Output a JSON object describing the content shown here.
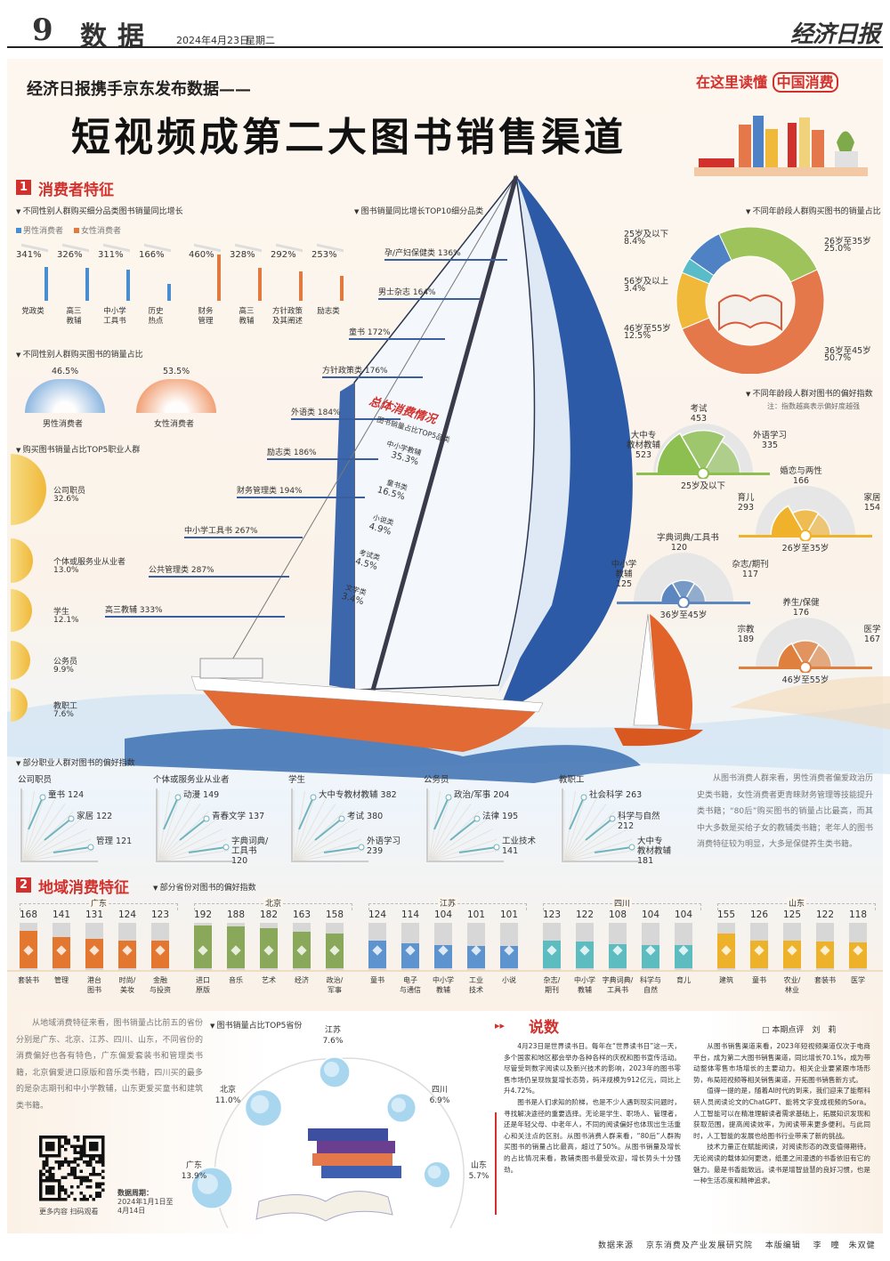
{
  "masthead": {
    "page_no": "9",
    "section": "数据",
    "date": "2024年4月23日",
    "weekday": "星期二",
    "logo": "经济日报"
  },
  "headline": {
    "kicker": "经济日报携手京东发布数据——",
    "title": "短视频成第二大图书销售渠道",
    "tagline_prefix": "在这里读懂",
    "tagline_highlight": "中国消费"
  },
  "section1": {
    "number": "1",
    "title": "消费者特征",
    "gender_growth": {
      "title": "不同性别人群购买细分品类图书销量同比增长",
      "legend": [
        {
          "name": "男性消费者",
          "color": "#4a8ed1"
        },
        {
          "name": "女性消费者",
          "color": "#e2793f"
        }
      ],
      "bars": [
        {
          "label": "党政类",
          "value": "341%",
          "v": 341,
          "group": 0
        },
        {
          "label": "高三\n教辅",
          "value": "326%",
          "v": 326,
          "group": 0
        },
        {
          "label": "中小学\n工具书",
          "value": "311%",
          "v": 311,
          "group": 0
        },
        {
          "label": "历史\n热点",
          "value": "166%",
          "v": 166,
          "group": 0
        },
        {
          "label": "财务\n管理",
          "value": "460%",
          "v": 460,
          "group": 1
        },
        {
          "label": "高三\n教辅",
          "value": "328%",
          "v": 328,
          "group": 1
        },
        {
          "label": "方针政策\n及其阐述",
          "value": "292%",
          "v": 292,
          "group": 1
        },
        {
          "label": "励志类",
          "value": "253%",
          "v": 253,
          "group": 1
        }
      ]
    },
    "gender_share": {
      "title": "不同性别人群购买图书的销量占比",
      "items": [
        {
          "name": "男性消费者",
          "value": "46.5%",
          "color": "#6fa6dc"
        },
        {
          "name": "女性消费者",
          "value": "53.5%",
          "color": "#ee8a55"
        }
      ]
    },
    "occupation_top5": {
      "title": "购买图书销量占比TOP5职业人群",
      "items": [
        {
          "name": "公司职员",
          "value": "32.6%",
          "v": 32.6
        },
        {
          "name": "个体或服务业从业者",
          "value": "13.0%",
          "v": 13.0
        },
        {
          "name": "学生",
          "value": "12.1%",
          "v": 12.1
        },
        {
          "name": "公务员",
          "value": "9.9%",
          "v": 9.9
        },
        {
          "name": "教职工",
          "value": "7.6%",
          "v": 7.6
        }
      ]
    },
    "top10": {
      "title": "图书销量同比增长TOP10细分品类",
      "items": [
        "孕/产妇保健类 136%",
        "男士杂志 164%",
        "童书 172%",
        "方针政策类 176%",
        "外语类 184%",
        "励志类 186%",
        "财务管理类 194%",
        "中小学工具书 267%",
        "公共管理类 287%",
        "高三教辅 333%"
      ]
    },
    "overall": {
      "title": "总体消费情况",
      "subtitle": "图书销量占比TOP5品类",
      "items": [
        {
          "name": "中小学教辅",
          "value": "35.3%"
        },
        {
          "name": "童书类",
          "value": "16.5%"
        },
        {
          "name": "小说类",
          "value": "4.9%"
        },
        {
          "name": "考试类",
          "value": "4.5%"
        },
        {
          "name": "文学类",
          "value": "3.4%"
        }
      ]
    },
    "age_share": {
      "title": "不同年龄段人群购买图书的销量占比",
      "slices": [
        {
          "name": "26岁至35岁",
          "value": "25.0%",
          "v": 25.0,
          "color": "#9dc35a"
        },
        {
          "name": "36岁至45岁",
          "value": "50.7%",
          "v": 50.7,
          "color": "#e5784a"
        },
        {
          "name": "46岁至55岁",
          "value": "12.5%",
          "v": 12.5,
          "color": "#f0b93a"
        },
        {
          "name": "56岁及以上",
          "value": "3.4%",
          "v": 3.4,
          "color": "#5bbcc9"
        },
        {
          "name": "25岁及以下",
          "value": "8.4%",
          "v": 8.4,
          "color": "#4f82c4"
        }
      ]
    },
    "age_pref": {
      "title": "不同年龄段人群对图书的偏好指数",
      "note": "注：指数越高表示偏好度越强",
      "groups": [
        {
          "age": "25岁及以下",
          "color": "#8cbf4f",
          "items": [
            {
              "name": "大中专\n教材教辅",
              "value": "523",
              "v": 523
            },
            {
              "name": "考试",
              "value": "453",
              "v": 453
            },
            {
              "name": "外语学习",
              "value": "335",
              "v": 335
            }
          ]
        },
        {
          "age": "26岁至35岁",
          "color": "#f0b22b",
          "items": [
            {
              "name": "育儿",
              "value": "293",
              "v": 293
            },
            {
              "name": "婚恋与两性",
              "value": "166",
              "v": 166
            },
            {
              "name": "家居",
              "value": "154",
              "v": 154
            }
          ]
        },
        {
          "age": "36岁至45岁",
          "color": "#5b86bf",
          "items": [
            {
              "name": "中小学\n教辅",
              "value": "125",
              "v": 125
            },
            {
              "name": "字典词典/工具书",
              "value": "120",
              "v": 120
            },
            {
              "name": "杂志/期刊",
              "value": "117",
              "v": 117
            }
          ]
        },
        {
          "age": "46岁至55岁",
          "color": "#e0803e",
          "items": [
            {
              "name": "宗教",
              "value": "189",
              "v": 189
            },
            {
              "name": "养生/保健",
              "value": "176",
              "v": 176
            },
            {
              "name": "医学",
              "value": "167",
              "v": 167
            }
          ]
        }
      ]
    },
    "occupation_pref": {
      "title": "部分职业人群对图书的偏好指数",
      "groups": [
        {
          "name": "公司职员",
          "items": [
            "童书 124",
            "家居 122",
            "管理 121"
          ]
        },
        {
          "name": "个体或服务业从业者",
          "items": [
            "动漫 149",
            "青春文学 137",
            "字典词典/\n工具书\n120"
          ]
        },
        {
          "name": "学生",
          "items": [
            "大中专教材教辅 382",
            "考试 380",
            "外语学习\n239"
          ]
        },
        {
          "name": "公务员",
          "items": [
            "政治/军事 204",
            "法律 195",
            "工业技术\n141"
          ]
        },
        {
          "name": "教职工",
          "items": [
            "社会科学 263",
            "科学与自然\n212",
            "大中专\n教材教辅\n181"
          ]
        }
      ]
    },
    "commentary": "从图书消费人群来看，男性消费者偏爱政治历史类书籍，女性消费者更青睐财务管理等技能提升类书籍；“80后”购买图书的销量占比最高，而其中大多数是买给子女的教辅类书籍；老年人的图书消费特征较为明显，大多是保健养生类书籍。"
  },
  "section2": {
    "number": "2",
    "title": "地域消费特征",
    "province_pref": {
      "title": "部分省份对图书的偏好指数",
      "provinces": [
        {
          "name": "广东",
          "color": "#e4772f",
          "items": [
            {
              "label": "套装书",
              "v": 168
            },
            {
              "label": "管理",
              "v": 141
            },
            {
              "label": "港台\n图书",
              "v": 131
            },
            {
              "label": "时尚/\n美妆",
              "v": 124
            },
            {
              "label": "金融\n与投资",
              "v": 123
            }
          ]
        },
        {
          "name": "北京",
          "color": "#8aa85a",
          "items": [
            {
              "label": "进口\n原版",
              "v": 192
            },
            {
              "label": "音乐",
              "v": 188
            },
            {
              "label": "艺术",
              "v": 182
            },
            {
              "label": "经济",
              "v": 163
            },
            {
              "label": "政治/\n军事",
              "v": 158
            }
          ]
        },
        {
          "name": "江苏",
          "color": "#5d93cf",
          "items": [
            {
              "label": "童书",
              "v": 124
            },
            {
              "label": "电子\n与通信",
              "v": 114
            },
            {
              "label": "中小学\n教辅",
              "v": 104
            },
            {
              "label": "工业\n技术",
              "v": 101
            },
            {
              "label": "小说",
              "v": 101
            }
          ]
        },
        {
          "name": "四川",
          "color": "#5cbcc0",
          "items": [
            {
              "label": "杂志/\n期刊",
              "v": 123
            },
            {
              "label": "中小学\n教辅",
              "v": 122
            },
            {
              "label": "字典词典/\n工具书",
              "v": 108
            },
            {
              "label": "科学与\n自然",
              "v": 104
            },
            {
              "label": "育儿",
              "v": 104
            }
          ]
        },
        {
          "name": "山东",
          "color": "#eeb22a",
          "items": [
            {
              "label": "建筑",
              "v": 155
            },
            {
              "label": "童书",
              "v": 126
            },
            {
              "label": "农业/\n林业",
              "v": 125
            },
            {
              "label": "套装书",
              "v": 122
            },
            {
              "label": "医学",
              "v": 118
            }
          ]
        }
      ]
    },
    "commentary": "从地域消费特征来看，图书销量占比前五的省份分别是广东、北京、江苏、四川、山东，不同省份的消费偏好也各有特色，广东偏爱套装书和管理类书籍，北京偏爱进口原版和音乐类书籍，四川买的最多的是杂志期刊和中小学教辅，山东更爱买童书和建筑类书籍。",
    "top5_provinces": {
      "title": "图书销量占比TOP5省份",
      "items": [
        {
          "name": "广东",
          "value": "13.9%",
          "v": 13.9
        },
        {
          "name": "北京",
          "value": "11.0%",
          "v": 11.0
        },
        {
          "name": "江苏",
          "value": "7.6%",
          "v": 7.6
        },
        {
          "name": "四川",
          "value": "6.9%",
          "v": 6.9
        },
        {
          "name": "山东",
          "value": "5.7%",
          "v": 5.7
        }
      ]
    }
  },
  "qr": {
    "caption": "更多内容 扫码观看"
  },
  "period": {
    "label": "数据周期：",
    "range": "2024年1月1日至\n4月14日"
  },
  "shuoshu": {
    "title": "说数",
    "byline": "□ 本期点评　刘　莉",
    "paragraphs": [
      "4月23日是世界读书日。每年在“世界读书日”这一天，多个国家和地区都会举办各种各样的庆祝和图书宣传活动。尽管受到数字阅读以及新兴技术的影响，2023年的图书零售市场仍呈现恢复增长态势，码洋规模为912亿元，同比上升4.72%。",
      "图书是人们求知的阶梯，也是不少人遇到现实问题时，寻找解决途径的重要选择。无论是学生、职场人、管理者，还是年轻父母、中老年人，不同的阅读偏好也体现出生活重心和关注点的区别。从图书消费人群来看，“80后”人群购买图书的销量占比最高，超过了50%。从图书销量及增长的占比情况来看，教辅类图书最受欢迎，增长势头十分强劲。",
      "从图书销售渠道来看，2023年短视频渠道仅次于电商平台，成为第二大图书销售渠道，同比增长70.1%，成为带动整体零售市场增长的主要动力。相关企业要紧跟市场形势，布局短视频等相关销售渠道，开拓图书销售新方式。",
      "值得一提的是，随着AI时代的到来，我们迎来了能帮科研人员阅读论文的ChatGPT、能将文字变成视频的Sora。人工智能可以在精准理解读者需求基础上，拓展知识发现和获取范围，提高阅读效率，为阅读带来更多便利。与此同时，人工智能的发展也给图书行业带来了新的挑战。",
      "技术力量正在赋能阅读，对阅读形态的改变值得期待。无论阅读的载体如何更迭，纸墨之间漫透的书香依旧有它的魅力。最是书香能致远。读书是增智益慧的良好习惯，也是一种生活态度和精神追求。"
    ]
  },
  "footer": {
    "source_label": "数据来源",
    "source": "京东消费及产业发展研究院",
    "editor_label": "本版编辑",
    "editors": "李　瞳　朱双健"
  }
}
